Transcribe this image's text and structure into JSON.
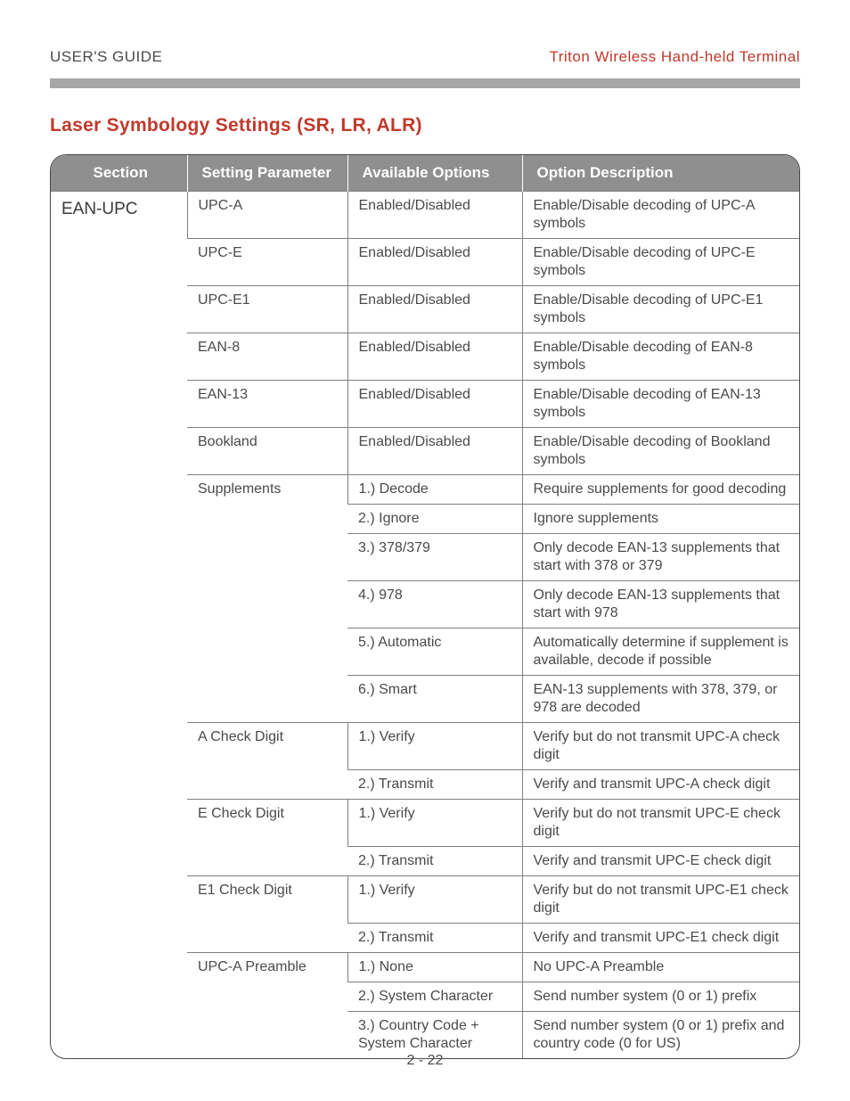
{
  "header": {
    "left": "USER'S GUIDE",
    "right": "Triton Wireless Hand-held Terminal"
  },
  "title": "Laser Symbology Settings (SR, LR, ALR)",
  "columns": [
    "Section",
    "Setting Parameter",
    "Available Options",
    "Option Description"
  ],
  "section_label": "EAN-UPC",
  "rows": [
    {
      "param": "UPC-A",
      "param_span": 1,
      "opt": "Enabled/Disabled",
      "desc": "Enable/Disable decoding of UPC-A symbols"
    },
    {
      "param": "UPC-E",
      "param_span": 1,
      "opt": "Enabled/Disabled",
      "desc": "Enable/Disable decoding of UPC-E symbols"
    },
    {
      "param": "UPC-E1",
      "param_span": 1,
      "opt": "Enabled/Disabled",
      "desc": "Enable/Disable decoding of UPC-E1 symbols"
    },
    {
      "param": "EAN-8",
      "param_span": 1,
      "opt": "Enabled/Disabled",
      "desc": "Enable/Disable decoding of EAN-8 symbols"
    },
    {
      "param": "EAN-13",
      "param_span": 1,
      "opt": "Enabled/Disabled",
      "desc": "Enable/Disable decoding of EAN-13 symbols"
    },
    {
      "param": "Bookland",
      "param_span": 1,
      "opt": "Enabled/Disabled",
      "desc": "Enable/Disable decoding of Bookland symbols"
    },
    {
      "param": "Supplements",
      "param_span": 6,
      "opt": "1.) Decode",
      "desc": "Require supplements for good decoding"
    },
    {
      "opt": "2.) Ignore",
      "desc": "Ignore supplements"
    },
    {
      "opt": "3.) 378/379",
      "desc": "Only decode EAN-13 supplements that start with 378 or 379"
    },
    {
      "opt": "4.) 978",
      "desc": "Only decode EAN-13 supplements that start with 978"
    },
    {
      "opt": "5.) Automatic",
      "desc": "Automatically determine if supplement is available, decode if possible"
    },
    {
      "opt": "6.) Smart",
      "desc": "EAN-13 supplements with 378, 379, or 978 are decoded"
    },
    {
      "param": "A Check Digit",
      "param_span": 2,
      "opt": "1.) Verify",
      "desc": "Verify but do not transmit UPC-A check digit"
    },
    {
      "opt": "2.) Transmit",
      "desc": "Verify and transmit UPC-A check digit"
    },
    {
      "param": "E Check Digit",
      "param_span": 2,
      "opt": "1.) Verify",
      "desc": "Verify but do not transmit UPC-E check digit"
    },
    {
      "opt": "2.) Transmit",
      "desc": "Verify and transmit UPC-E check digit"
    },
    {
      "param": "E1 Check Digit",
      "param_span": 2,
      "opt": "1.) Verify",
      "desc": "Verify but do not transmit UPC-E1 check digit"
    },
    {
      "opt": "2.) Transmit",
      "desc": "Verify and transmit UPC-E1 check digit"
    },
    {
      "param": "UPC-A Preamble",
      "param_span": 3,
      "opt": "1.) None",
      "desc": "No UPC-A Preamble"
    },
    {
      "opt": "2.) System Character",
      "desc": "Send number system (0 or 1) prefix"
    },
    {
      "opt": "3.) Country Code + System Character",
      "desc": "Send number system (0 or 1) prefix and country code (0 for US)"
    }
  ],
  "total_rows": 21,
  "page_num": "2 - 22",
  "colors": {
    "accent": "#c0392b",
    "header_bg": "#8f8f8f",
    "border": "#808080",
    "text": "#4a4a4a"
  }
}
